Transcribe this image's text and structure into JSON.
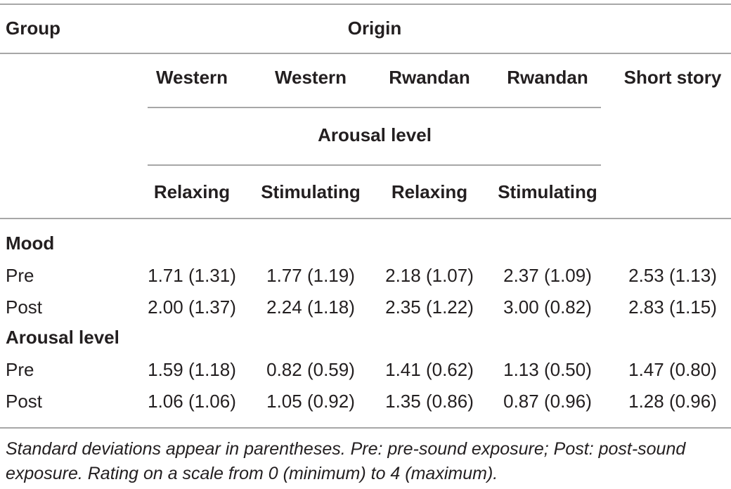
{
  "table": {
    "header": {
      "group": "Group",
      "origin": "Origin",
      "origins": [
        "Western",
        "Western",
        "Rwandan",
        "Rwandan",
        "Short story"
      ],
      "arousal_header": "Arousal level",
      "arousal": [
        "Relaxing",
        "Stimulating",
        "Relaxing",
        "Stimulating"
      ]
    },
    "sections": [
      {
        "title": "Mood",
        "rows": [
          {
            "label": "Pre",
            "cells": [
              "1.71 (1.31)",
              "1.77 (1.19)",
              "2.18 (1.07)",
              "2.37 (1.09)",
              "2.53 (1.13)"
            ]
          },
          {
            "label": "Post",
            "cells": [
              "2.00 (1.37)",
              "2.24 (1.18)",
              "2.35 (1.22)",
              "3.00 (0.82)",
              "2.83 (1.15)"
            ]
          }
        ]
      },
      {
        "title": "Arousal level",
        "rows": [
          {
            "label": "Pre",
            "cells": [
              "1.59 (1.18)",
              "0.82 (0.59)",
              "1.41 (0.62)",
              "1.13 (0.50)",
              "1.47 (0.80)"
            ]
          },
          {
            "label": "Post",
            "cells": [
              "1.06 (1.06)",
              "1.05 (0.92)",
              "1.35 (0.86)",
              "0.87 (0.96)",
              "1.28 (0.96)"
            ]
          }
        ]
      }
    ],
    "note": "Standard deviations appear in parentheses. Pre: pre-sound exposure; Post: post-sound exposure. Rating on a scale from 0 (minimum) to 4 (maximum)."
  }
}
